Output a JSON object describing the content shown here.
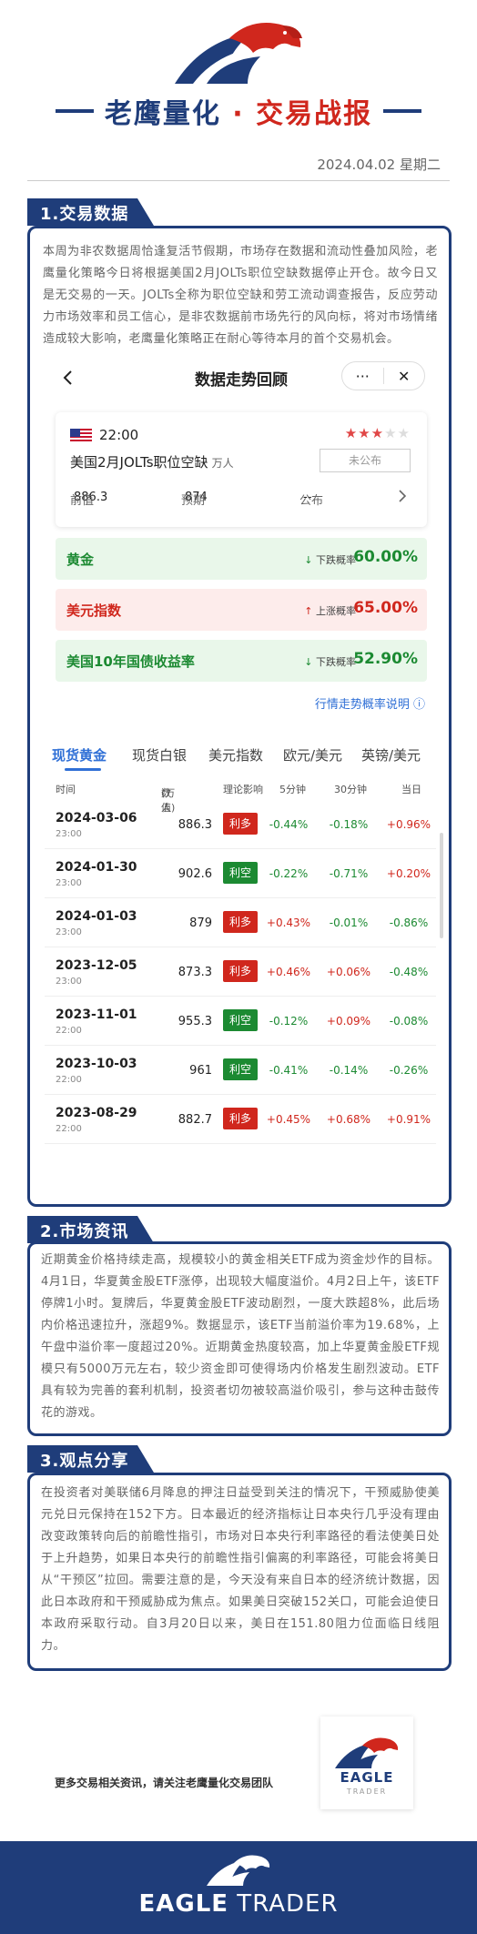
{
  "header": {
    "title_main": "老鹰量化",
    "title_dot": "·",
    "title_sub": "交易战报",
    "date": "2024.04.02 星期二"
  },
  "section1": {
    "label": "1.交易数据",
    "paragraph": "本周为非农数据周恰逢复活节假期，市场存在数据和流动性叠加风险，老鹰量化策略今日将根据美国2月JOLTs职位空缺数据停止开仓。故今日又是无交易的一天。JOLTs全称为职位空缺和劳工流动调查报告，反应劳动力市场效率和员工信心，是非农数据前市场先行的风向标，将对市场情绪造成较大影响，老鹰量化策略正在耐心等待本月的首个交易机会。"
  },
  "app": {
    "title": "数据走势回顾",
    "more": "···",
    "close": "✕",
    "event": {
      "time": "22:00",
      "name": "美国2月JOLTs职位空缺",
      "unit": "万人",
      "stars_on": "★★★",
      "stars_off": "★★",
      "status_button": "未公布",
      "prev_label": "前值",
      "prev_value": "886.3",
      "forecast_label": "预期",
      "forecast_value": "874",
      "actual_label": "公布",
      "actual_value": "--"
    },
    "probabilities": [
      {
        "name": "黄金",
        "direction": "下跌概率",
        "arrow": "↓",
        "value": "60.00%",
        "tone": "green"
      },
      {
        "name": "美元指数",
        "direction": "上涨概率",
        "arrow": "↑",
        "value": "65.00%",
        "tone": "red"
      },
      {
        "name": "美国10年国债收益率",
        "direction": "下跌概率",
        "arrow": "↓",
        "value": "52.90%",
        "tone": "green"
      }
    ],
    "explain_link": "行情走势概率说明 ⓘ",
    "market_tabs": [
      "现货黄金",
      "现货白银",
      "美元指数",
      "欧元/美元",
      "英镑/美元"
    ],
    "table_headers": {
      "time": "时间",
      "value": "数值",
      "value_unit": "(万人)",
      "impact": "理论影响",
      "m5": "5分钟",
      "m30": "30分钟",
      "day": "当日"
    },
    "rows": [
      {
        "date": "2024-03-06",
        "time": "23:00",
        "value": "886.3",
        "impact": "利多",
        "m5": "-0.44%",
        "m30": "-0.18%",
        "day": "+0.96%"
      },
      {
        "date": "2024-01-30",
        "time": "23:00",
        "value": "902.6",
        "impact": "利空",
        "m5": "-0.22%",
        "m30": "-0.71%",
        "day": "+0.20%"
      },
      {
        "date": "2024-01-03",
        "time": "23:00",
        "value": "879",
        "impact": "利多",
        "m5": "+0.43%",
        "m30": "-0.01%",
        "day": "-0.86%"
      },
      {
        "date": "2023-12-05",
        "time": "23:00",
        "value": "873.3",
        "impact": "利多",
        "m5": "+0.46%",
        "m30": "+0.06%",
        "day": "-0.48%"
      },
      {
        "date": "2023-11-01",
        "time": "22:00",
        "value": "955.3",
        "impact": "利空",
        "m5": "-0.12%",
        "m30": "+0.09%",
        "day": "-0.08%"
      },
      {
        "date": "2023-10-03",
        "time": "22:00",
        "value": "961",
        "impact": "利空",
        "m5": "-0.41%",
        "m30": "-0.14%",
        "day": "-0.26%"
      },
      {
        "date": "2023-08-29",
        "time": "22:00",
        "value": "882.7",
        "impact": "利多",
        "m5": "+0.45%",
        "m30": "+0.68%",
        "day": "+0.91%"
      }
    ]
  },
  "section2": {
    "label": "2.市场资讯",
    "paragraph": "近期黄金价格持续走高，规模较小的黄金相关ETF成为资金炒作的目标。4月1日，华夏黄金股ETF涨停，出现较大幅度溢价。4月2日上午，该ETF停牌1小时。复牌后，华夏黄金股ETF波动剧烈，一度大跌超8%，此后场内价格迅速拉升，涨超9%。数据显示，该ETF当前溢价率为19.68%，上午盘中溢价率一度超过20%。近期黄金热度较高，加上华夏黄金股ETF规模只有5000万元左右，较少资金即可使得场内价格发生剧烈波动。ETF具有较为完善的套利机制，投资者切勿被较高溢价吸引，参与这种击鼓传花的游戏。"
  },
  "section3": {
    "label": "3.观点分享",
    "paragraph": "在投资者对美联储6月降息的押注日益受到关注的情况下，干预威胁使美元兑日元保持在152下方。日本最近的经济指标让日本央行几乎没有理由改变政策转向后的前瞻性指引，市场对日本央行利率路径的看法使美日处于上升趋势，如果日本央行的前瞻性指引偏离的利率路径，可能会将美日从“干预区”拉回。需要注意的是，今天没有来自日本的经济统计数据，因此日本政府和干预威胁成为焦点。如果美日突破152关口，可能会迫使日本政府采取行动。自3月20日以来，美日在151.80阻力位面临日线阻力。"
  },
  "footer": {
    "note": "更多交易相关资讯，请关注老鹰量化交易团队",
    "qr_brand": "EAGLE",
    "qr_sub": "TRADER",
    "brand_bold": "EAGLE",
    "brand_rest": " TRADER"
  },
  "colors": {
    "navy": "#1f3d7a",
    "red": "#d0271d",
    "green": "#1c8a32",
    "link_blue": "#2f6fd6"
  },
  "icons": [
    "eagle-logo-icon",
    "back-arrow-icon",
    "more-icon",
    "close-icon",
    "us-flag-icon",
    "chevron-right-icon",
    "info-icon"
  ]
}
